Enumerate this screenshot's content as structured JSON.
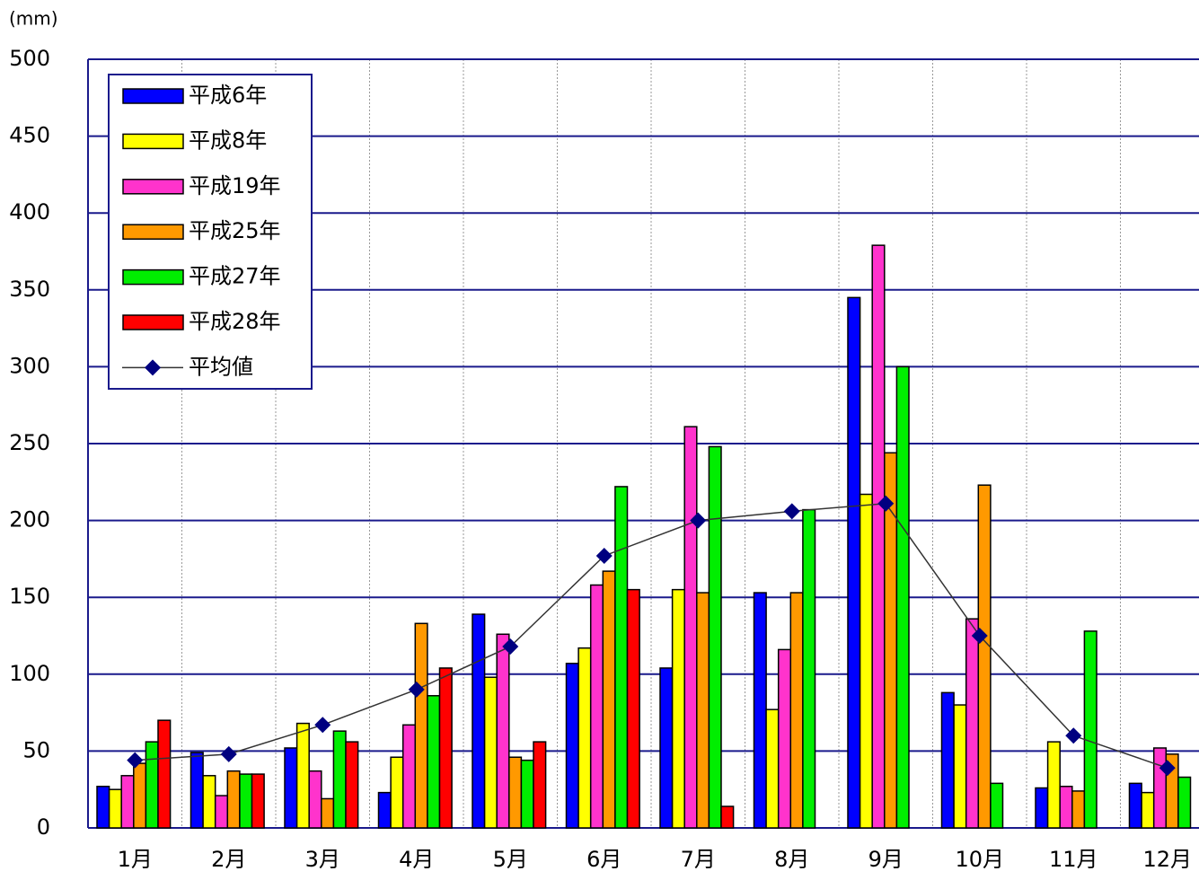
{
  "chart_data": {
    "type": "bar",
    "unit_label": "(mm)",
    "categories": [
      "1月",
      "2月",
      "3月",
      "4月",
      "5月",
      "6月",
      "7月",
      "8月",
      "9月",
      "10月",
      "11月",
      "12月"
    ],
    "series": [
      {
        "name": "平成6年",
        "color": "#0000ff",
        "values": [
          27,
          49,
          52,
          23,
          139,
          107,
          104,
          153,
          345,
          88,
          26,
          29
        ]
      },
      {
        "name": "平成8年",
        "color": "#ffff00",
        "values": [
          25,
          34,
          68,
          46,
          98,
          117,
          155,
          77,
          217,
          80,
          56,
          23
        ]
      },
      {
        "name": "平成19年",
        "color": "#ff33cc",
        "values": [
          34,
          21,
          37,
          67,
          126,
          158,
          261,
          116,
          379,
          136,
          27,
          52
        ]
      },
      {
        "name": "平成25年",
        "color": "#ff9900",
        "values": [
          42,
          37,
          19,
          133,
          46,
          167,
          153,
          153,
          244,
          223,
          24,
          48
        ]
      },
      {
        "name": "平成27年",
        "color": "#00ee00",
        "values": [
          56,
          35,
          63,
          86,
          44,
          222,
          248,
          207,
          300,
          29,
          128,
          33
        ]
      },
      {
        "name": "平成28年",
        "color": "#ff0000",
        "values": [
          70,
          35,
          56,
          104,
          56,
          155,
          14,
          null,
          null,
          null,
          null,
          null
        ]
      },
      {
        "name": "平均値",
        "type": "line",
        "color": "#000080",
        "values": [
          44,
          48,
          67,
          90,
          118,
          177,
          200,
          206,
          211,
          125,
          60,
          39
        ]
      }
    ],
    "ylim": [
      0,
      500
    ],
    "yticks": [
      0,
      50,
      100,
      150,
      200,
      250,
      300,
      350,
      400,
      450,
      500
    ],
    "grid": true,
    "legend": "upper left"
  }
}
